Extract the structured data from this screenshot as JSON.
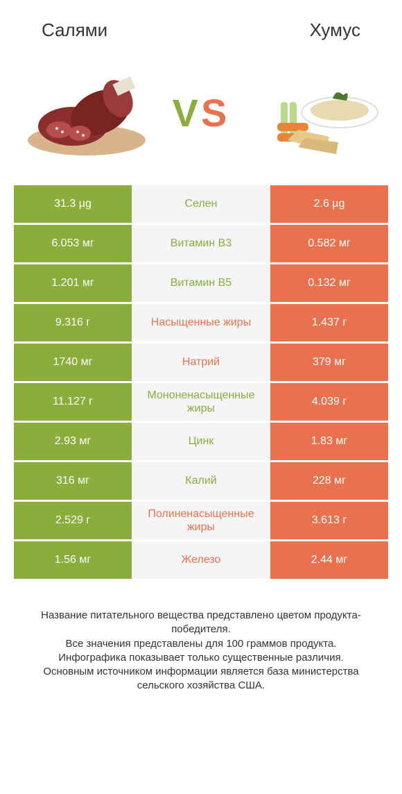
{
  "header": {
    "left_title": "Салями",
    "right_title": "Хумус"
  },
  "vs": {
    "v": "V",
    "s": "S"
  },
  "colors": {
    "green": "#8aad3b",
    "orange": "#e8724f",
    "mid_bg": "#f5f5f5",
    "page_bg": "#ffffff",
    "text": "#333333"
  },
  "table": {
    "rows": [
      {
        "left": "31.3 µg",
        "mid": "Селен",
        "right": "2.6 µg",
        "winner": "left"
      },
      {
        "left": "6.053 мг",
        "mid": "Витамин B3",
        "right": "0.582 мг",
        "winner": "left"
      },
      {
        "left": "1.201 мг",
        "mid": "Витамин B5",
        "right": "0.132 мг",
        "winner": "left"
      },
      {
        "left": "9.316 г",
        "mid": "Насыщенные жиры",
        "right": "1.437 г",
        "winner": "right"
      },
      {
        "left": "1740 мг",
        "mid": "Натрий",
        "right": "379 мг",
        "winner": "right"
      },
      {
        "left": "11.127 г",
        "mid": "Мононенасыщенные жиры",
        "right": "4.039 г",
        "winner": "left"
      },
      {
        "left": "2.93 мг",
        "mid": "Цинк",
        "right": "1.83 мг",
        "winner": "left"
      },
      {
        "left": "316 мг",
        "mid": "Калий",
        "right": "228 мг",
        "winner": "left"
      },
      {
        "left": "2.529 г",
        "mid": "Полиненасыщенные жиры",
        "right": "3.613 г",
        "winner": "right"
      },
      {
        "left": "1.56 мг",
        "mid": "Железо",
        "right": "2.44 мг",
        "winner": "right"
      }
    ]
  },
  "footer": {
    "line1": "Название питательного вещества представлено цветом продукта-победителя.",
    "line2": "Все значения представлены для 100 граммов продукта.",
    "line3": "Инфографика показывает только существенные различия.",
    "line4": "Основным источником информации является база министерства сельского хозяйства США."
  }
}
